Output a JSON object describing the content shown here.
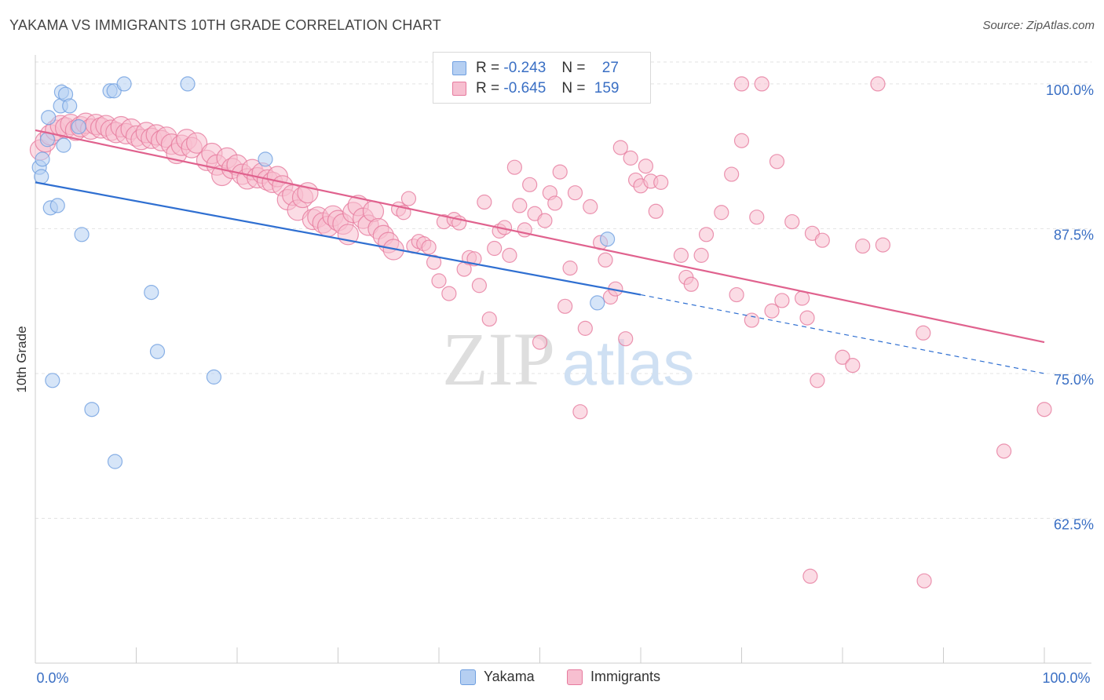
{
  "title": "YAKAMA VS IMMIGRANTS 10TH GRADE CORRELATION CHART",
  "source": "Source: ZipAtlas.com",
  "watermark": {
    "zip": "ZIP",
    "atlas": "atlas"
  },
  "legend": {
    "r_label": "R =",
    "n_label": "N =",
    "rows": [
      {
        "name": "Yakama",
        "r": "-0.243",
        "n": "27",
        "color": "#6f9fe0",
        "fill": "#b5cff2"
      },
      {
        "name": "Immigrants",
        "r": "-0.645",
        "n": "159",
        "color": "#e67a9e",
        "fill": "#f7bfd0"
      }
    ]
  },
  "chart_data": {
    "type": "scatter",
    "ylabel": "10th Grade",
    "xlim": [
      0,
      100
    ],
    "ylim": [
      50,
      102.5
    ],
    "x_tick_labels": [
      {
        "value": 0,
        "label": "0.0%"
      },
      {
        "value": 100,
        "label": "100.0%"
      }
    ],
    "y_ticks": [
      {
        "value": 100,
        "label": "100.0%"
      },
      {
        "value": 87.5,
        "label": "87.5%"
      },
      {
        "value": 75,
        "label": "75.0%"
      },
      {
        "value": 62.5,
        "label": "62.5%"
      }
    ],
    "grid": true,
    "series": [
      {
        "name": "Yakama",
        "color": "#6f9fe0",
        "fill": "#b5cff2",
        "points": [
          [
            0.4,
            92.8
          ],
          [
            0.6,
            92.0
          ],
          [
            0.7,
            93.5
          ],
          [
            1.2,
            95.2
          ],
          [
            1.3,
            97.1
          ],
          [
            1.5,
            89.3
          ],
          [
            1.7,
            74.4
          ],
          [
            2.2,
            89.5
          ],
          [
            2.5,
            98.1
          ],
          [
            2.6,
            99.3
          ],
          [
            2.8,
            94.7
          ],
          [
            3.0,
            99.1
          ],
          [
            3.4,
            98.1
          ],
          [
            4.3,
            96.3
          ],
          [
            4.6,
            87.0
          ],
          [
            5.6,
            71.9
          ],
          [
            7.4,
            99.4
          ],
          [
            7.8,
            99.4
          ],
          [
            7.9,
            67.4
          ],
          [
            8.8,
            100.0
          ],
          [
            11.5,
            82.0
          ],
          [
            12.1,
            76.9
          ],
          [
            15.1,
            100.0
          ],
          [
            17.7,
            74.7
          ],
          [
            22.8,
            93.5
          ],
          [
            56.7,
            86.6
          ],
          [
            55.7,
            81.1
          ]
        ],
        "trend": {
          "x0": 0,
          "y0": 91.5,
          "x1": 60,
          "y1": 81.8,
          "dash_to_x": 100,
          "dash_to_y": 75.0
        }
      },
      {
        "name": "Immigrants",
        "color": "#e67a9e",
        "fill": "#f7bfd0",
        "points": [
          [
            0.5,
            94.3
          ],
          [
            1.0,
            95.0
          ],
          [
            1.5,
            95.6
          ],
          [
            2.0,
            96.0
          ],
          [
            2.5,
            96.4
          ],
          [
            3.0,
            96.2
          ],
          [
            3.5,
            96.5
          ],
          [
            4.0,
            96.0
          ],
          [
            4.5,
            96.3
          ],
          [
            5.0,
            96.6
          ],
          [
            5.5,
            96.1
          ],
          [
            6.0,
            96.5
          ],
          [
            6.5,
            96.2
          ],
          [
            7.0,
            96.4
          ],
          [
            7.5,
            96.0
          ],
          [
            8.0,
            95.8
          ],
          [
            8.5,
            96.3
          ],
          [
            9.0,
            95.7
          ],
          [
            9.5,
            96.1
          ],
          [
            10.0,
            95.5
          ],
          [
            10.5,
            95.2
          ],
          [
            11.0,
            95.8
          ],
          [
            11.5,
            95.3
          ],
          [
            12.0,
            95.6
          ],
          [
            12.5,
            95.1
          ],
          [
            13.0,
            95.4
          ],
          [
            13.5,
            94.8
          ],
          [
            14.0,
            94.0
          ],
          [
            14.5,
            94.7
          ],
          [
            15.0,
            95.2
          ],
          [
            15.5,
            94.5
          ],
          [
            16.0,
            94.9
          ],
          [
            17.0,
            93.4
          ],
          [
            17.5,
            94.0
          ],
          [
            18.0,
            93.0
          ],
          [
            18.5,
            92.1
          ],
          [
            19.0,
            93.6
          ],
          [
            19.5,
            92.7
          ],
          [
            20.0,
            93.0
          ],
          [
            20.5,
            92.2
          ],
          [
            21.0,
            91.8
          ],
          [
            21.5,
            92.6
          ],
          [
            22.0,
            91.9
          ],
          [
            22.5,
            92.3
          ],
          [
            23.0,
            91.7
          ],
          [
            23.5,
            91.5
          ],
          [
            24.0,
            92.0
          ],
          [
            24.5,
            91.2
          ],
          [
            25.0,
            90.0
          ],
          [
            25.5,
            90.4
          ],
          [
            26.0,
            89.1
          ],
          [
            26.5,
            90.2
          ],
          [
            27.0,
            90.6
          ],
          [
            27.5,
            88.3
          ],
          [
            28.0,
            88.5
          ],
          [
            28.5,
            88.0
          ],
          [
            29.0,
            87.7
          ],
          [
            29.5,
            88.6
          ],
          [
            30.0,
            88.2
          ],
          [
            30.5,
            87.9
          ],
          [
            31.0,
            87.0
          ],
          [
            31.5,
            88.9
          ],
          [
            32.0,
            89.5
          ],
          [
            32.5,
            88.4
          ],
          [
            33.0,
            87.8
          ],
          [
            33.5,
            89.0
          ],
          [
            34.0,
            87.5
          ],
          [
            34.5,
            86.9
          ],
          [
            35.0,
            86.3
          ],
          [
            35.5,
            85.7
          ],
          [
            36.0,
            89.2
          ],
          [
            36.5,
            88.9
          ],
          [
            37.0,
            90.1
          ],
          [
            37.5,
            86.0
          ],
          [
            38.0,
            86.4
          ],
          [
            38.5,
            86.2
          ],
          [
            39.0,
            85.9
          ],
          [
            39.5,
            84.6
          ],
          [
            40.0,
            83.0
          ],
          [
            40.5,
            88.1
          ],
          [
            41.0,
            81.9
          ],
          [
            41.5,
            88.3
          ],
          [
            42.0,
            88.0
          ],
          [
            42.5,
            84.0
          ],
          [
            43.0,
            85.0
          ],
          [
            43.5,
            84.9
          ],
          [
            44.0,
            82.6
          ],
          [
            44.5,
            89.8
          ],
          [
            45.0,
            79.7
          ],
          [
            45.5,
            85.8
          ],
          [
            46.0,
            87.3
          ],
          [
            46.5,
            87.6
          ],
          [
            47.0,
            85.2
          ],
          [
            47.5,
            92.8
          ],
          [
            48.0,
            89.5
          ],
          [
            48.5,
            87.4
          ],
          [
            49.0,
            91.3
          ],
          [
            49.5,
            88.8
          ],
          [
            50.0,
            77.7
          ],
          [
            50.5,
            88.2
          ],
          [
            51.0,
            90.6
          ],
          [
            51.5,
            89.7
          ],
          [
            52.0,
            92.4
          ],
          [
            52.5,
            80.8
          ],
          [
            53.0,
            84.1
          ],
          [
            53.5,
            90.6
          ],
          [
            54.0,
            71.7
          ],
          [
            54.5,
            78.9
          ],
          [
            55.0,
            89.4
          ],
          [
            56.0,
            86.3
          ],
          [
            56.5,
            84.8
          ],
          [
            57.0,
            81.6
          ],
          [
            57.5,
            82.3
          ],
          [
            58.0,
            94.5
          ],
          [
            58.5,
            78.0
          ],
          [
            59.0,
            93.6
          ],
          [
            59.5,
            91.7
          ],
          [
            60.0,
            91.2
          ],
          [
            60.5,
            92.9
          ],
          [
            61.0,
            91.6
          ],
          [
            61.5,
            89.0
          ],
          [
            62.0,
            91.5
          ],
          [
            64.0,
            85.2
          ],
          [
            64.5,
            83.3
          ],
          [
            65.0,
            82.7
          ],
          [
            66.0,
            85.2
          ],
          [
            66.5,
            87.0
          ],
          [
            68.0,
            88.9
          ],
          [
            69.0,
            92.2
          ],
          [
            69.5,
            81.8
          ],
          [
            70.0,
            95.1
          ],
          [
            71.0,
            79.6
          ],
          [
            71.5,
            88.5
          ],
          [
            73.0,
            80.4
          ],
          [
            73.5,
            93.3
          ],
          [
            74.0,
            81.3
          ],
          [
            75.0,
            88.1
          ],
          [
            76.0,
            81.5
          ],
          [
            76.5,
            79.8
          ],
          [
            77.0,
            87.1
          ],
          [
            77.5,
            74.4
          ],
          [
            78.0,
            86.5
          ],
          [
            80.0,
            76.4
          ],
          [
            81.0,
            75.7
          ],
          [
            82.0,
            86.0
          ],
          [
            84.0,
            86.1
          ],
          [
            88.0,
            78.5
          ],
          [
            70.0,
            100.0
          ],
          [
            72.0,
            100.0
          ],
          [
            83.5,
            100.0
          ],
          [
            100.0,
            71.9
          ],
          [
            96.0,
            68.3
          ],
          [
            76.8,
            57.5
          ],
          [
            88.1,
            57.1
          ]
        ],
        "trend": {
          "x0": 0,
          "y0": 96.0,
          "x1": 100,
          "y1": 77.7
        }
      }
    ]
  }
}
